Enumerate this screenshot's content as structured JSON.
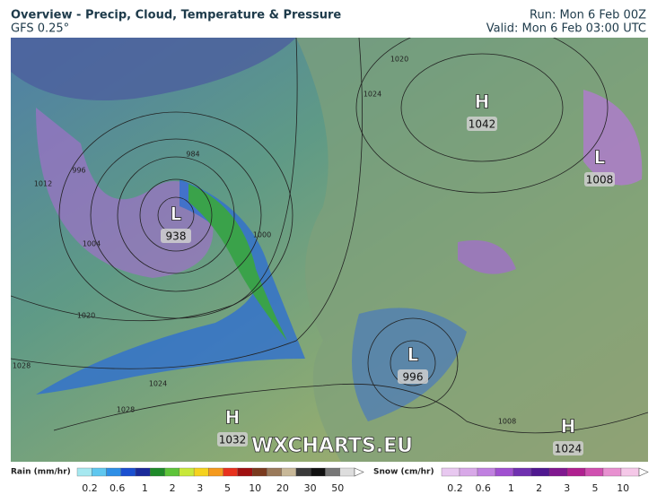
{
  "header": {
    "title": "Overview - Precip, Cloud, Temperature & Pressure",
    "model": "GFS 0.25°",
    "run": "Run: Mon 6 Feb 00Z",
    "valid": "Valid: Mon 6 Feb 03:00 UTC"
  },
  "pressure_centers": [
    {
      "type": "H",
      "value": 1042
    },
    {
      "type": "L",
      "value": 1008
    },
    {
      "type": "L",
      "value": 938
    },
    {
      "type": "L",
      "value": 996
    },
    {
      "type": "H",
      "value": 1032
    },
    {
      "type": "H",
      "value": 1024
    }
  ],
  "isobar_labels": [
    1012,
    996,
    984,
    1004,
    1020,
    1028,
    1024,
    1028,
    1020,
    1024,
    1008,
    1000
  ],
  "watermark": "WXCHARTS.EU",
  "rain_legend": {
    "label": "Rain (mm/hr)",
    "ticks": [
      "0.2",
      "0.6",
      "1",
      "2",
      "3",
      "5",
      "10",
      "20",
      "30",
      "50"
    ]
  },
  "snow_legend": {
    "label": "Snow (cm/hr)",
    "ticks": [
      "0.2",
      "0.6",
      "1",
      "2",
      "3",
      "5",
      "10"
    ]
  }
}
